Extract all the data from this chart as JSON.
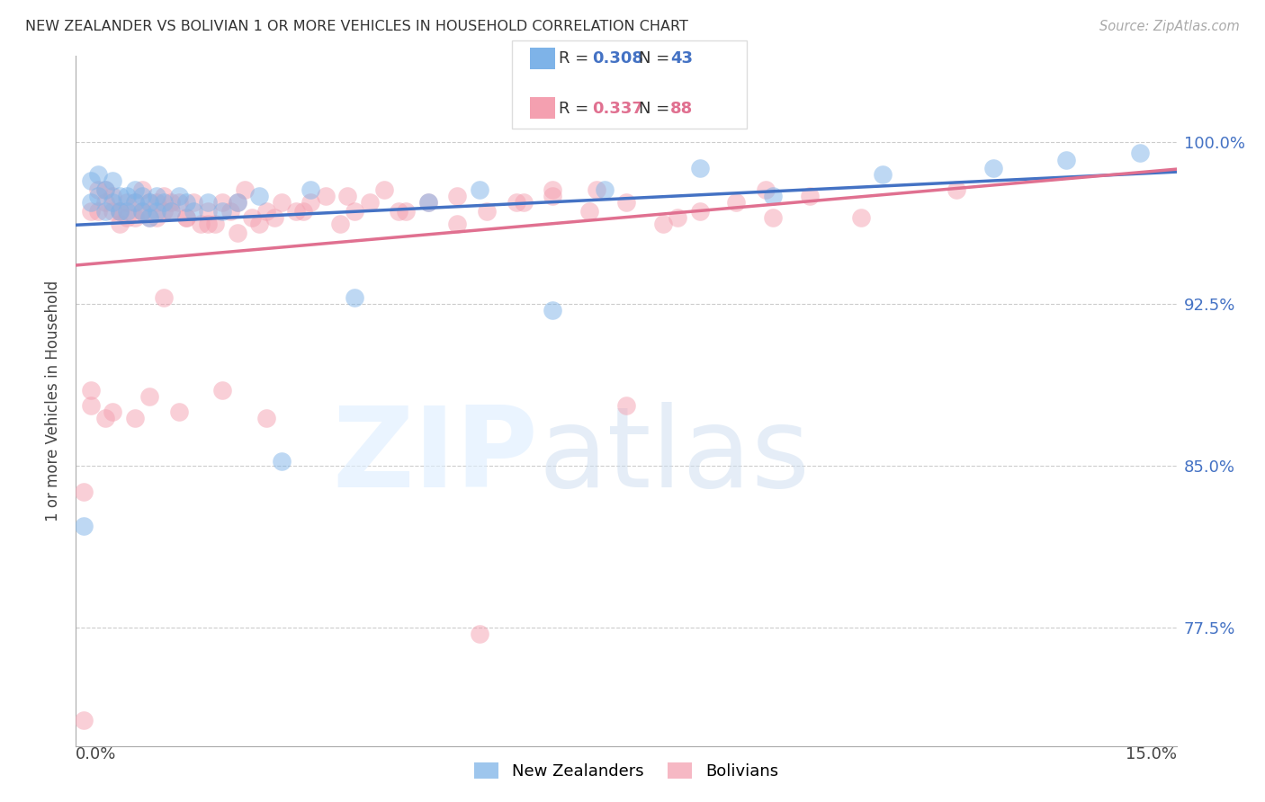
{
  "title": "NEW ZEALANDER VS BOLIVIAN 1 OR MORE VEHICLES IN HOUSEHOLD CORRELATION CHART",
  "source": "Source: ZipAtlas.com",
  "ylabel": "1 or more Vehicles in Household",
  "ytick_labels": [
    "77.5%",
    "85.0%",
    "92.5%",
    "100.0%"
  ],
  "ytick_values": [
    0.775,
    0.85,
    0.925,
    1.0
  ],
  "xmin": 0.0,
  "xmax": 0.15,
  "ymin": 0.72,
  "ymax": 1.04,
  "legend_nz_R": "0.308",
  "legend_nz_N": "43",
  "legend_bo_R": "0.337",
  "legend_bo_N": "88",
  "nz_color": "#7EB3E8",
  "bo_color": "#F4A0B0",
  "nz_line_color": "#4472C4",
  "bo_line_color": "#E07090",
  "nz_x": [
    0.001,
    0.002,
    0.002,
    0.003,
    0.003,
    0.004,
    0.004,
    0.005,
    0.005,
    0.006,
    0.006,
    0.007,
    0.007,
    0.008,
    0.008,
    0.009,
    0.009,
    0.01,
    0.01,
    0.011,
    0.011,
    0.012,
    0.013,
    0.014,
    0.015,
    0.016,
    0.018,
    0.02,
    0.022,
    0.025,
    0.028,
    0.032,
    0.038,
    0.048,
    0.055,
    0.065,
    0.072,
    0.085,
    0.095,
    0.11,
    0.125,
    0.135,
    0.145
  ],
  "nz_y": [
    0.822,
    0.972,
    0.982,
    0.975,
    0.985,
    0.968,
    0.978,
    0.972,
    0.982,
    0.968,
    0.975,
    0.968,
    0.975,
    0.972,
    0.978,
    0.968,
    0.975,
    0.972,
    0.965,
    0.968,
    0.975,
    0.972,
    0.968,
    0.975,
    0.972,
    0.968,
    0.972,
    0.968,
    0.972,
    0.975,
    0.852,
    0.978,
    0.928,
    0.972,
    0.978,
    0.922,
    0.978,
    0.988,
    0.975,
    0.985,
    0.988,
    0.992,
    0.995
  ],
  "bo_x": [
    0.001,
    0.001,
    0.002,
    0.003,
    0.003,
    0.004,
    0.004,
    0.005,
    0.005,
    0.006,
    0.006,
    0.007,
    0.007,
    0.008,
    0.008,
    0.009,
    0.009,
    0.01,
    0.01,
    0.011,
    0.011,
    0.012,
    0.012,
    0.013,
    0.013,
    0.014,
    0.015,
    0.016,
    0.017,
    0.018,
    0.019,
    0.02,
    0.021,
    0.022,
    0.023,
    0.024,
    0.025,
    0.026,
    0.027,
    0.028,
    0.03,
    0.032,
    0.034,
    0.036,
    0.038,
    0.04,
    0.042,
    0.045,
    0.048,
    0.052,
    0.056,
    0.06,
    0.065,
    0.07,
    0.075,
    0.08,
    0.085,
    0.09,
    0.095,
    0.1,
    0.002,
    0.004,
    0.006,
    0.008,
    0.01,
    0.012,
    0.015,
    0.018,
    0.022,
    0.026,
    0.031,
    0.037,
    0.044,
    0.052,
    0.061,
    0.071,
    0.082,
    0.094,
    0.107,
    0.12,
    0.002,
    0.005,
    0.009,
    0.014,
    0.02,
    0.055,
    0.065,
    0.075
  ],
  "bo_y": [
    0.732,
    0.838,
    0.968,
    0.968,
    0.978,
    0.972,
    0.978,
    0.968,
    0.975,
    0.962,
    0.968,
    0.965,
    0.972,
    0.965,
    0.972,
    0.968,
    0.978,
    0.965,
    0.972,
    0.972,
    0.965,
    0.968,
    0.975,
    0.968,
    0.972,
    0.972,
    0.965,
    0.972,
    0.962,
    0.968,
    0.962,
    0.972,
    0.968,
    0.972,
    0.978,
    0.965,
    0.962,
    0.968,
    0.965,
    0.972,
    0.968,
    0.972,
    0.975,
    0.962,
    0.968,
    0.972,
    0.978,
    0.968,
    0.972,
    0.975,
    0.968,
    0.972,
    0.975,
    0.968,
    0.972,
    0.962,
    0.968,
    0.972,
    0.965,
    0.975,
    0.878,
    0.872,
    0.968,
    0.872,
    0.882,
    0.928,
    0.965,
    0.962,
    0.958,
    0.872,
    0.968,
    0.975,
    0.968,
    0.962,
    0.972,
    0.978,
    0.965,
    0.978,
    0.965,
    0.978,
    0.885,
    0.875,
    0.968,
    0.875,
    0.885,
    0.772,
    0.978,
    0.878
  ]
}
